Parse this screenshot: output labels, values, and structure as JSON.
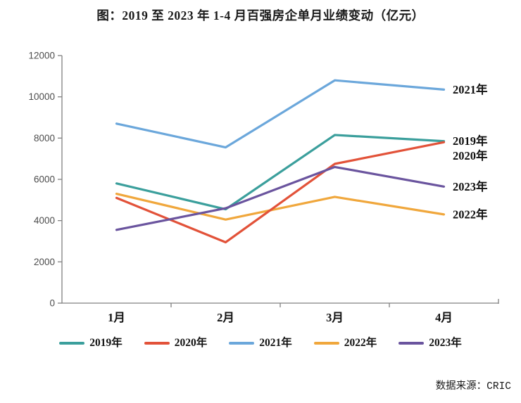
{
  "page": {
    "source_note": "数据来源：CRIC"
  },
  "chart_data": {
    "type": "line",
    "title": "图：2019 至 2023 年 1-4 月百强房企单月业绩变动（亿元）",
    "xlabel": "",
    "ylabel": "",
    "unit": "亿元",
    "categories": [
      "1月",
      "2月",
      "3月",
      "4月"
    ],
    "series": [
      {
        "name": "2019年",
        "color": "#3B9F9C",
        "values": [
          5800,
          4550,
          8150,
          7850
        ]
      },
      {
        "name": "2020年",
        "color": "#E25239",
        "values": [
          5100,
          2950,
          6750,
          7800
        ]
      },
      {
        "name": "2021年",
        "color": "#6BA7DB",
        "values": [
          8700,
          7550,
          10800,
          10350
        ]
      },
      {
        "name": "2022年",
        "color": "#F0A73C",
        "values": [
          5300,
          4050,
          5150,
          4300
        ]
      },
      {
        "name": "2023年",
        "color": "#6A549E",
        "values": [
          3550,
          4600,
          6600,
          5650
        ]
      }
    ],
    "ylim": [
      0,
      12000
    ],
    "yticks": [
      0,
      2000,
      4000,
      6000,
      8000,
      10000,
      12000
    ],
    "grid": false,
    "legend_position": "bottom",
    "end_labels_shown": true,
    "axis_color": "#808080",
    "tick_label_color": "#4d4d4d"
  }
}
